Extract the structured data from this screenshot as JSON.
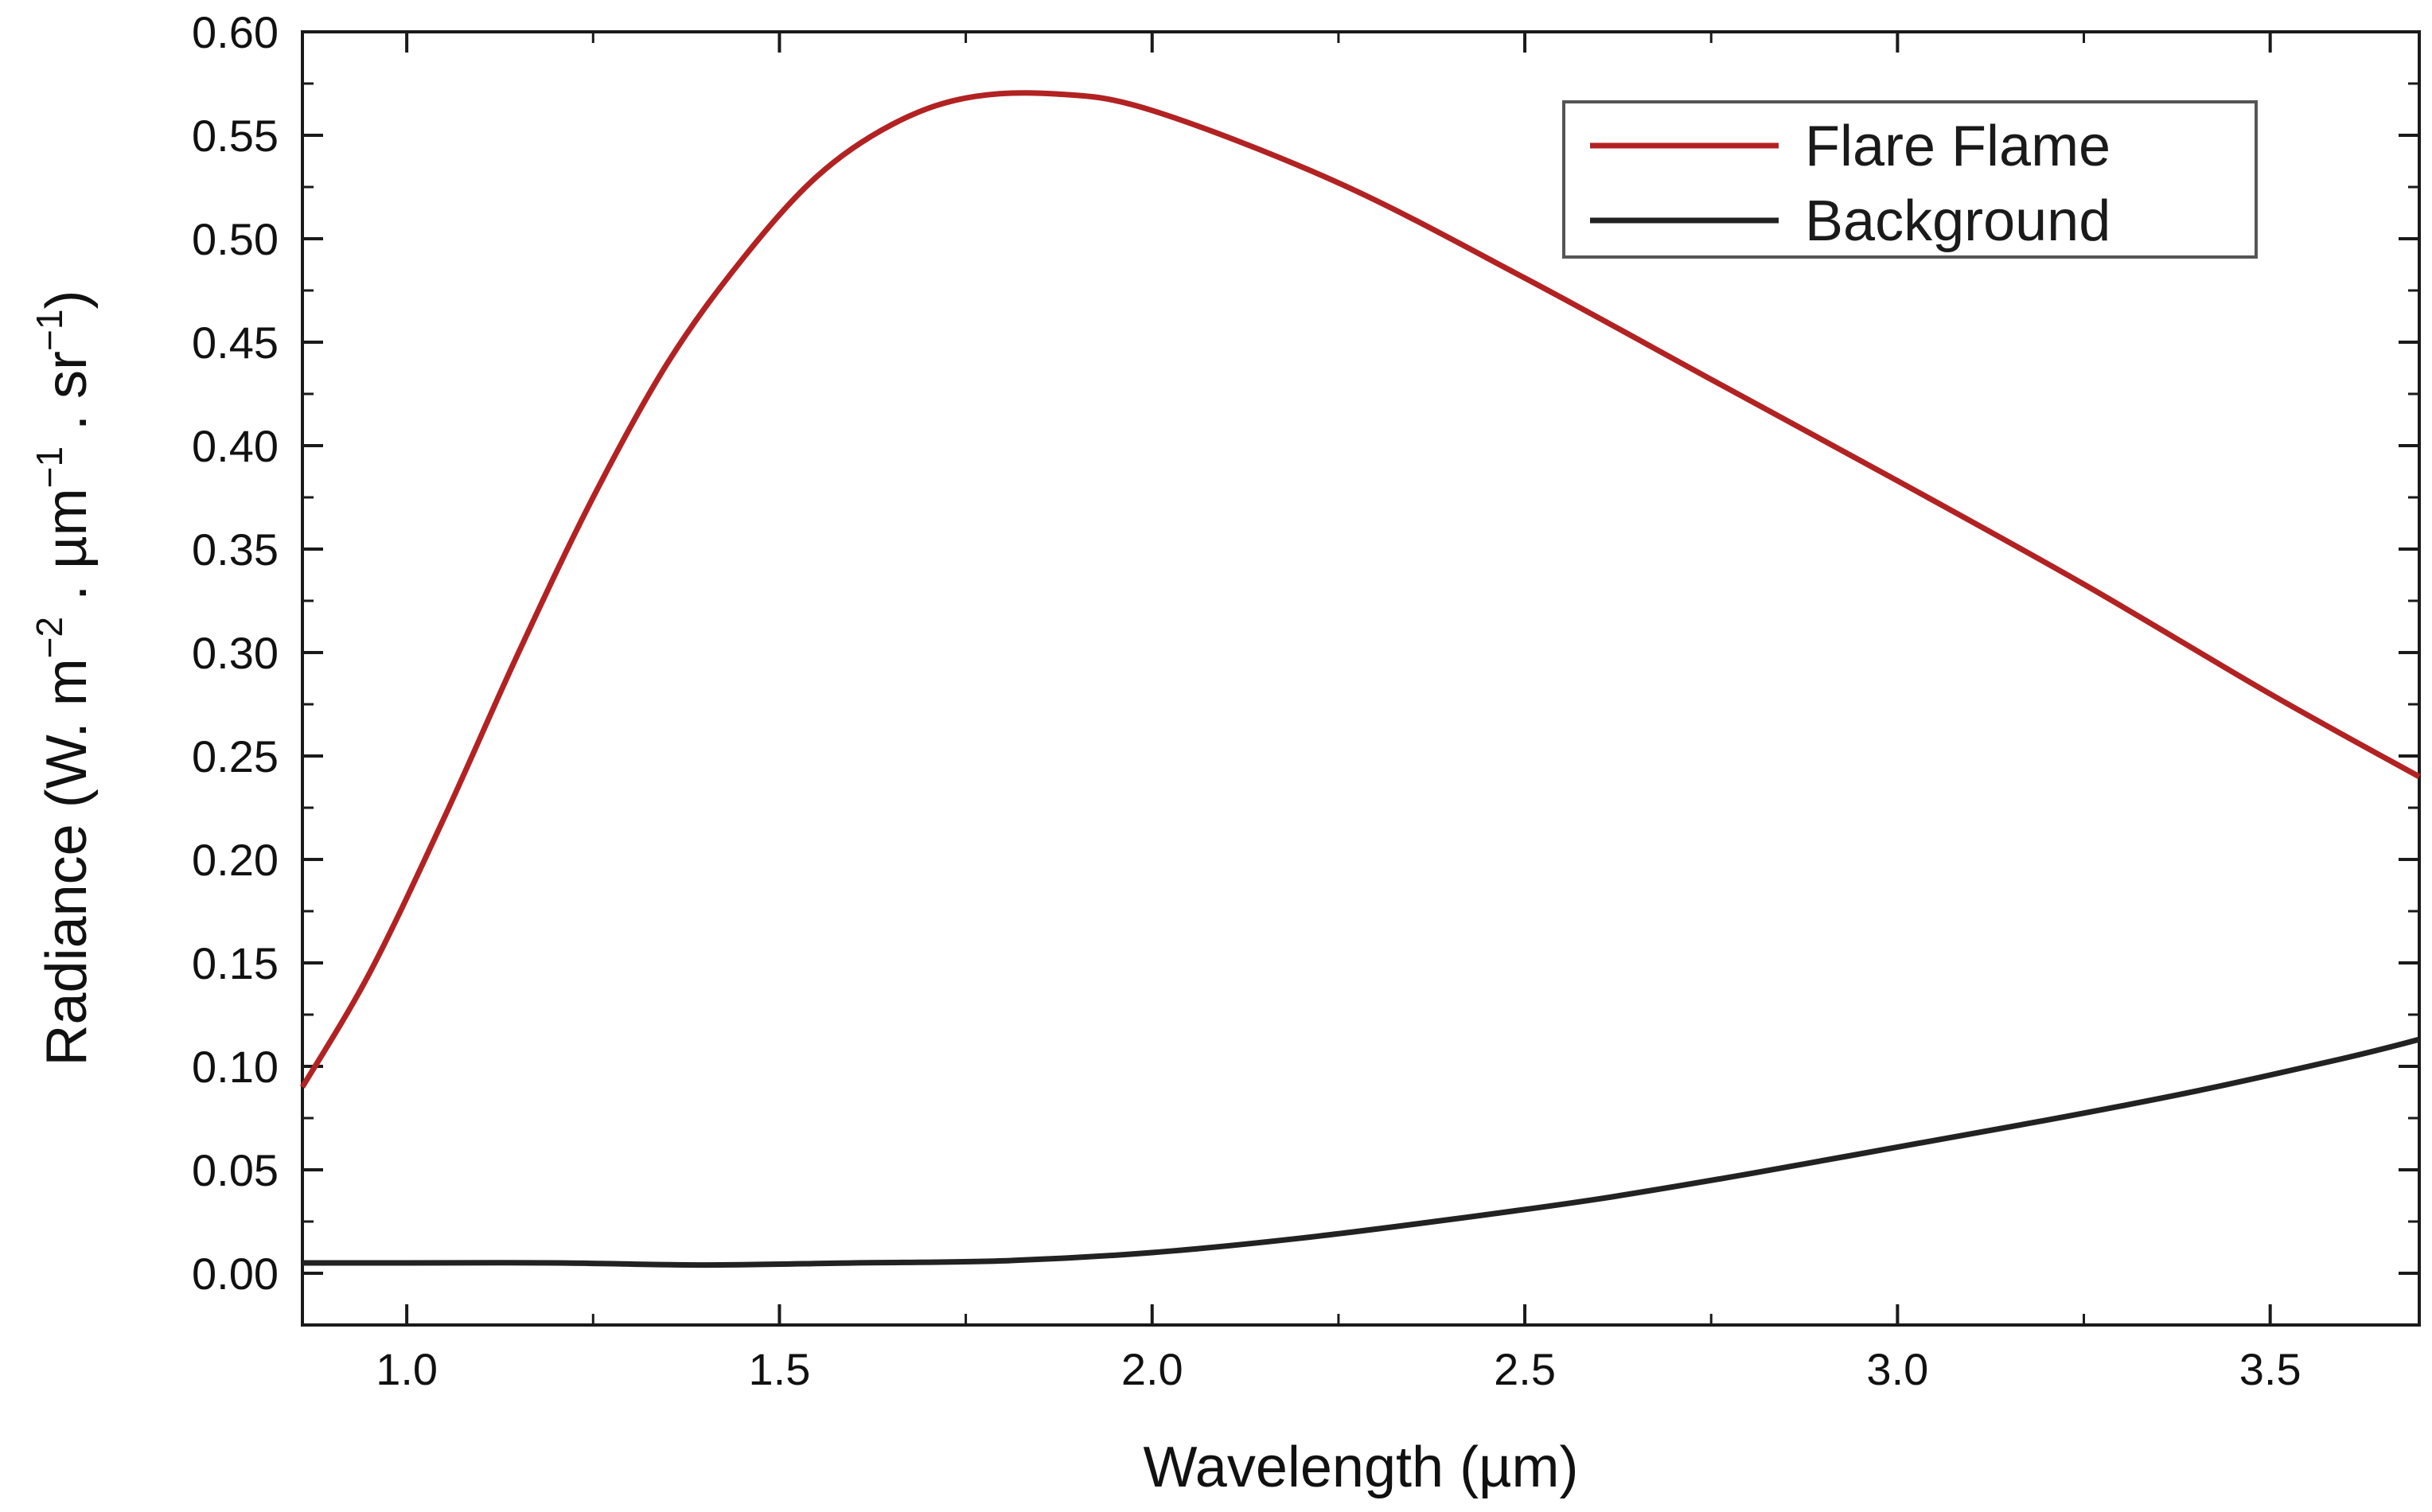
{
  "chart_data": {
    "type": "line",
    "title": "",
    "xlabel": "Wavelength (µm)",
    "ylabel_parts": {
      "base": "Radiance (W. m",
      "sup1": "−2",
      "mid": " . µm",
      "sup2": "−1",
      "mid2": " . sr",
      "sup3": "−1",
      "end": ")"
    },
    "xlim": [
      0.86,
      3.7
    ],
    "ylim": [
      -0.025,
      0.6
    ],
    "x_ticks": [
      1.0,
      1.5,
      2.0,
      2.5,
      3.0,
      3.5
    ],
    "x_tick_labels": [
      "1.0",
      "1.5",
      "2.0",
      "2.5",
      "3.0",
      "3.5"
    ],
    "y_ticks": [
      0.0,
      0.05,
      0.1,
      0.15,
      0.2,
      0.25,
      0.3,
      0.35,
      0.4,
      0.45,
      0.5,
      0.55,
      0.6
    ],
    "y_tick_labels": [
      "0.00",
      "0.05",
      "0.10",
      "0.15",
      "0.20",
      "0.25",
      "0.30",
      "0.35",
      "0.40",
      "0.45",
      "0.50",
      "0.55",
      "0.60"
    ],
    "grid": false,
    "legend_position": "top-right",
    "series": [
      {
        "name": "Flare Flame",
        "color": "#b22222",
        "x": [
          0.86,
          0.95,
          1.05,
          1.15,
          1.25,
          1.35,
          1.45,
          1.55,
          1.65,
          1.75,
          1.87,
          2.0,
          2.25,
          2.5,
          2.75,
          3.0,
          3.25,
          3.5,
          3.7
        ],
        "y": [
          0.09,
          0.145,
          0.22,
          0.3,
          0.375,
          0.44,
          0.49,
          0.53,
          0.555,
          0.568,
          0.57,
          0.562,
          0.527,
          0.481,
          0.432,
          0.383,
          0.333,
          0.28,
          0.24
        ]
      },
      {
        "name": "Background",
        "color": "#222222",
        "x": [
          0.86,
          1.0,
          1.2,
          1.4,
          1.6,
          1.8,
          2.0,
          2.2,
          2.4,
          2.6,
          2.8,
          3.0,
          3.2,
          3.4,
          3.6,
          3.7
        ],
        "y": [
          0.005,
          0.005,
          0.005,
          0.004,
          0.005,
          0.006,
          0.01,
          0.017,
          0.026,
          0.036,
          0.048,
          0.061,
          0.074,
          0.088,
          0.104,
          0.113
        ]
      }
    ]
  }
}
